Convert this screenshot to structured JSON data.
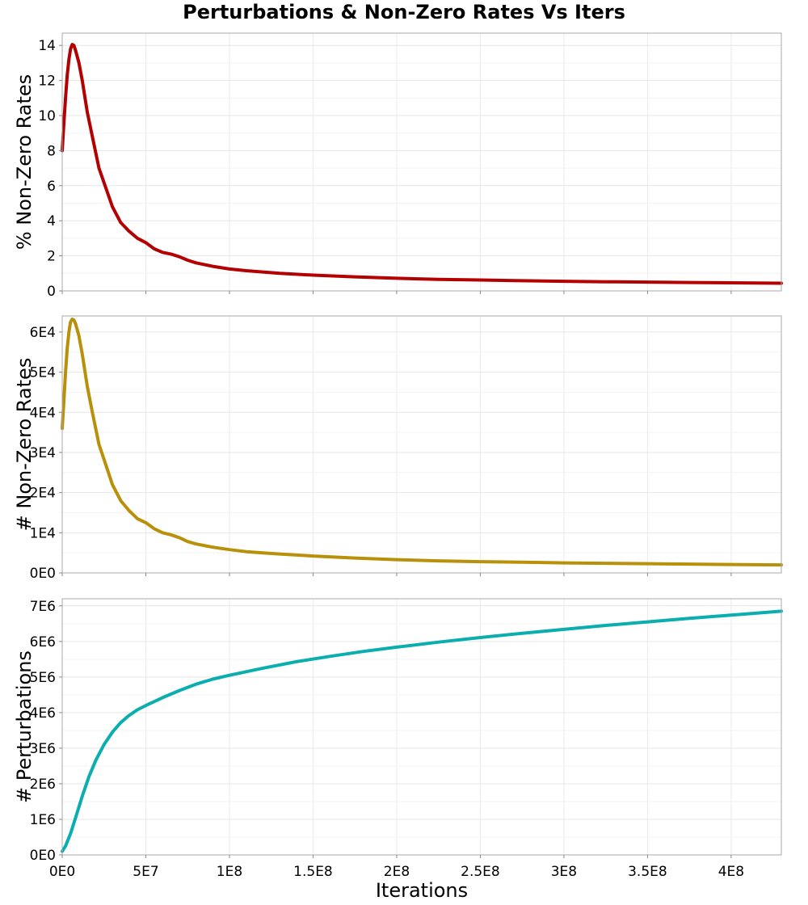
{
  "figure": {
    "title": "Perturbations & Non-Zero Rates Vs Iters",
    "xlabel": "Iterations"
  },
  "chart_data": [
    {
      "type": "line",
      "ylabel": "% Non-Zero Rates",
      "xlim": [
        0,
        430000000
      ],
      "ylim": [
        0,
        14.7
      ],
      "grid": true,
      "x_ticks": [
        0,
        50000000,
        100000000,
        150000000,
        200000000,
        250000000,
        300000000,
        350000000,
        400000000
      ],
      "x_tick_labels": [],
      "y_ticks": [
        0,
        2,
        4,
        6,
        8,
        10,
        12,
        14
      ],
      "y_tick_labels": [
        "0",
        "2",
        "4",
        "6",
        "8",
        "10",
        "12",
        "14"
      ],
      "series": [
        {
          "color": "#b30000",
          "x": [
            0,
            1000000,
            2000000,
            3000000,
            4000000,
            5000000,
            6000000,
            7000000,
            8000000,
            10000000,
            12000000,
            15000000,
            18000000,
            22000000,
            26000000,
            30000000,
            35000000,
            40000000,
            45000000,
            50000000,
            55000000,
            60000000,
            65000000,
            70000000,
            75000000,
            80000000,
            90000000,
            100000000,
            110000000,
            120000000,
            130000000,
            150000000,
            175000000,
            200000000,
            225000000,
            250000000,
            275000000,
            300000000,
            325000000,
            350000000,
            375000000,
            400000000,
            430000000
          ],
          "y": [
            8.0,
            9.6,
            11.0,
            12.3,
            13.2,
            13.8,
            14.05,
            14.0,
            13.7,
            13.0,
            12.0,
            10.2,
            8.8,
            7.0,
            5.9,
            4.8,
            3.9,
            3.4,
            3.0,
            2.75,
            2.4,
            2.2,
            2.1,
            1.95,
            1.75,
            1.6,
            1.4,
            1.25,
            1.15,
            1.08,
            1.0,
            0.9,
            0.8,
            0.72,
            0.66,
            0.62,
            0.58,
            0.55,
            0.52,
            0.5,
            0.48,
            0.46,
            0.44
          ]
        }
      ]
    },
    {
      "type": "line",
      "ylabel": "# Non-Zero Rates",
      "xlim": [
        0,
        430000000
      ],
      "ylim": [
        0,
        64000
      ],
      "grid": true,
      "x_ticks": [
        0,
        50000000,
        100000000,
        150000000,
        200000000,
        250000000,
        300000000,
        350000000,
        400000000
      ],
      "x_tick_labels": [],
      "y_ticks": [
        0,
        10000,
        20000,
        30000,
        40000,
        50000,
        60000
      ],
      "y_tick_labels": [
        "0E0",
        "1E4",
        "2E4",
        "3E4",
        "4E4",
        "5E4",
        "6E4"
      ],
      "series": [
        {
          "color": "#b8900a",
          "x": [
            0,
            1000000,
            2000000,
            3000000,
            4000000,
            5000000,
            6000000,
            7000000,
            8000000,
            10000000,
            12000000,
            15000000,
            18000000,
            22000000,
            26000000,
            30000000,
            35000000,
            40000000,
            45000000,
            50000000,
            55000000,
            60000000,
            65000000,
            70000000,
            75000000,
            80000000,
            90000000,
            100000000,
            110000000,
            120000000,
            130000000,
            150000000,
            175000000,
            200000000,
            225000000,
            250000000,
            275000000,
            300000000,
            325000000,
            350000000,
            375000000,
            400000000,
            430000000
          ],
          "y": [
            36000,
            43000,
            50000,
            56000,
            60000,
            62500,
            63200,
            63000,
            62000,
            59000,
            54500,
            46500,
            40000,
            32000,
            27000,
            22000,
            18000,
            15500,
            13500,
            12500,
            11000,
            10000,
            9500,
            8800,
            7800,
            7200,
            6400,
            5800,
            5300,
            5000,
            4700,
            4200,
            3700,
            3300,
            3000,
            2800,
            2650,
            2500,
            2400,
            2300,
            2200,
            2100,
            2000
          ]
        }
      ]
    },
    {
      "type": "line",
      "ylabel": "# Perturbations",
      "xlabel": "Iterations",
      "xlim": [
        0,
        430000000
      ],
      "ylim": [
        0,
        7200000
      ],
      "grid": true,
      "x_ticks": [
        0,
        50000000,
        100000000,
        150000000,
        200000000,
        250000000,
        300000000,
        350000000,
        400000000
      ],
      "x_tick_labels": [
        "0E0",
        "5E7",
        "1E8",
        "1.5E8",
        "2E8",
        "2.5E8",
        "3E8",
        "3.5E8",
        "4E8"
      ],
      "y_ticks": [
        0,
        1000000,
        2000000,
        3000000,
        4000000,
        5000000,
        6000000,
        7000000
      ],
      "y_tick_labels": [
        "0E0",
        "1E6",
        "2E6",
        "3E6",
        "4E6",
        "5E6",
        "6E6",
        "7E6"
      ],
      "series": [
        {
          "color": "#0aaeae",
          "x": [
            0,
            2000000,
            5000000,
            8000000,
            12000000,
            16000000,
            20000000,
            25000000,
            30000000,
            35000000,
            40000000,
            45000000,
            50000000,
            60000000,
            70000000,
            80000000,
            90000000,
            100000000,
            120000000,
            140000000,
            160000000,
            180000000,
            200000000,
            225000000,
            250000000,
            275000000,
            300000000,
            325000000,
            350000000,
            375000000,
            400000000,
            430000000
          ],
          "y": [
            100000,
            250000,
            600000,
            1050000,
            1650000,
            2200000,
            2650000,
            3100000,
            3450000,
            3720000,
            3920000,
            4080000,
            4200000,
            4420000,
            4620000,
            4800000,
            4940000,
            5050000,
            5250000,
            5430000,
            5580000,
            5720000,
            5840000,
            5980000,
            6110000,
            6230000,
            6340000,
            6450000,
            6550000,
            6650000,
            6740000,
            6850000
          ]
        }
      ]
    }
  ]
}
